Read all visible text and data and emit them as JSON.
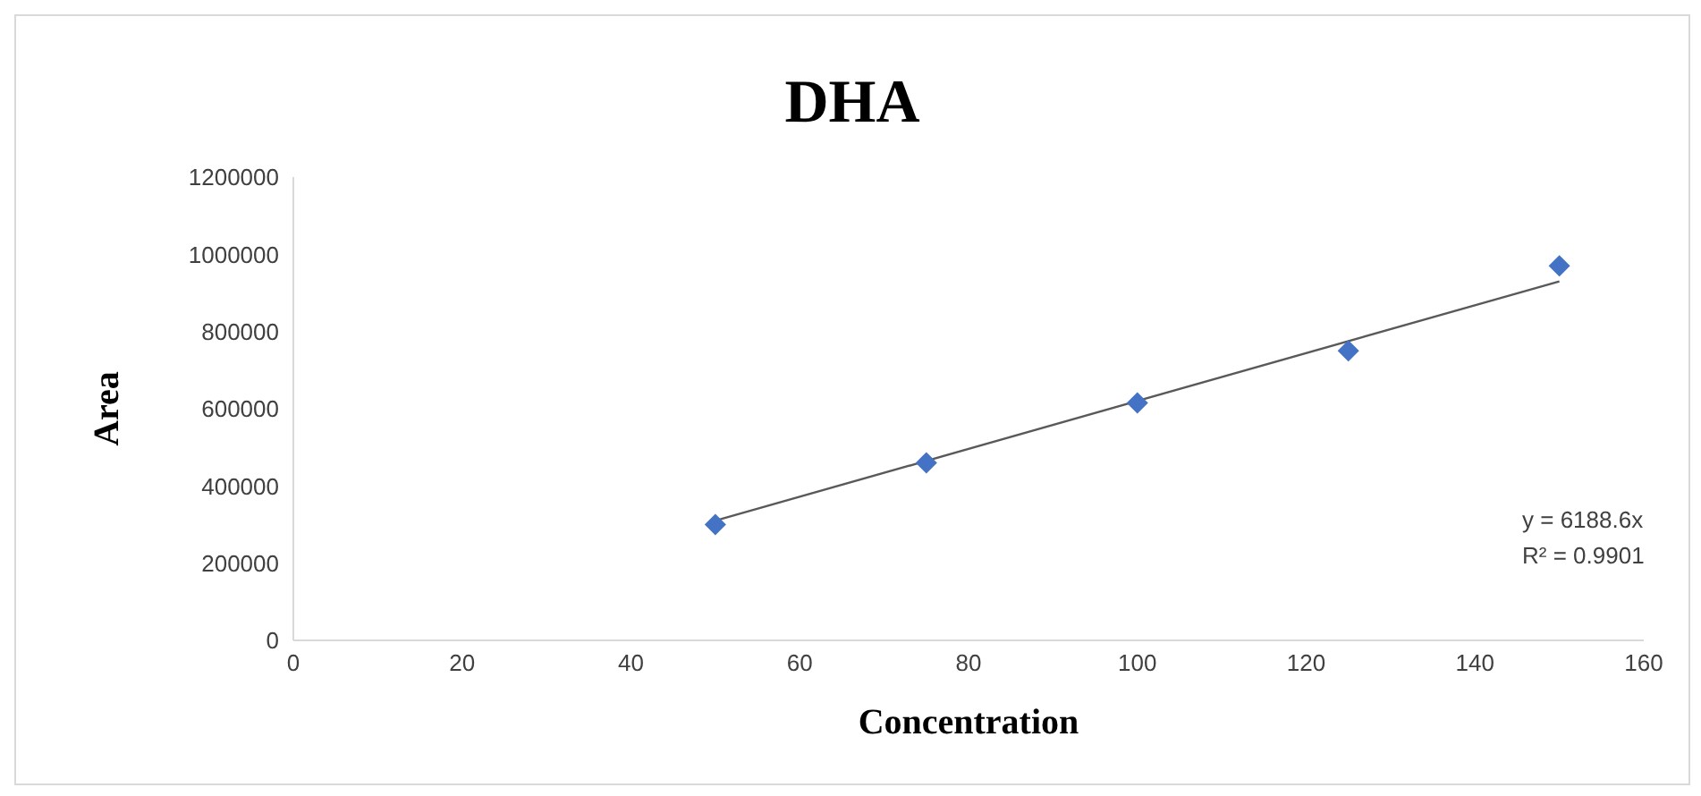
{
  "chart_data": {
    "type": "scatter",
    "title": "DHA",
    "xlabel": "Concentration",
    "ylabel": "Area",
    "xlim": [
      0,
      160
    ],
    "xticks": [
      0,
      20,
      40,
      60,
      80,
      100,
      120,
      140,
      160
    ],
    "ylim": [
      0,
      1200000
    ],
    "yticks": [
      0,
      200000,
      400000,
      600000,
      800000,
      1000000,
      1200000
    ],
    "grid": false,
    "legend": false,
    "marker": "diamond",
    "series": [
      {
        "color": "#4472c4",
        "x": [
          50,
          75,
          100,
          125,
          150
        ],
        "values": [
          300000,
          460000,
          615000,
          750000,
          970000
        ]
      },
      {
        "type": "line",
        "color": "#595959",
        "x": [
          50,
          150
        ],
        "values": [
          310000,
          930000
        ],
        "marker": "none"
      }
    ],
    "annotations": [
      "y = 6188.6x",
      "R² = 0.9901"
    ]
  }
}
